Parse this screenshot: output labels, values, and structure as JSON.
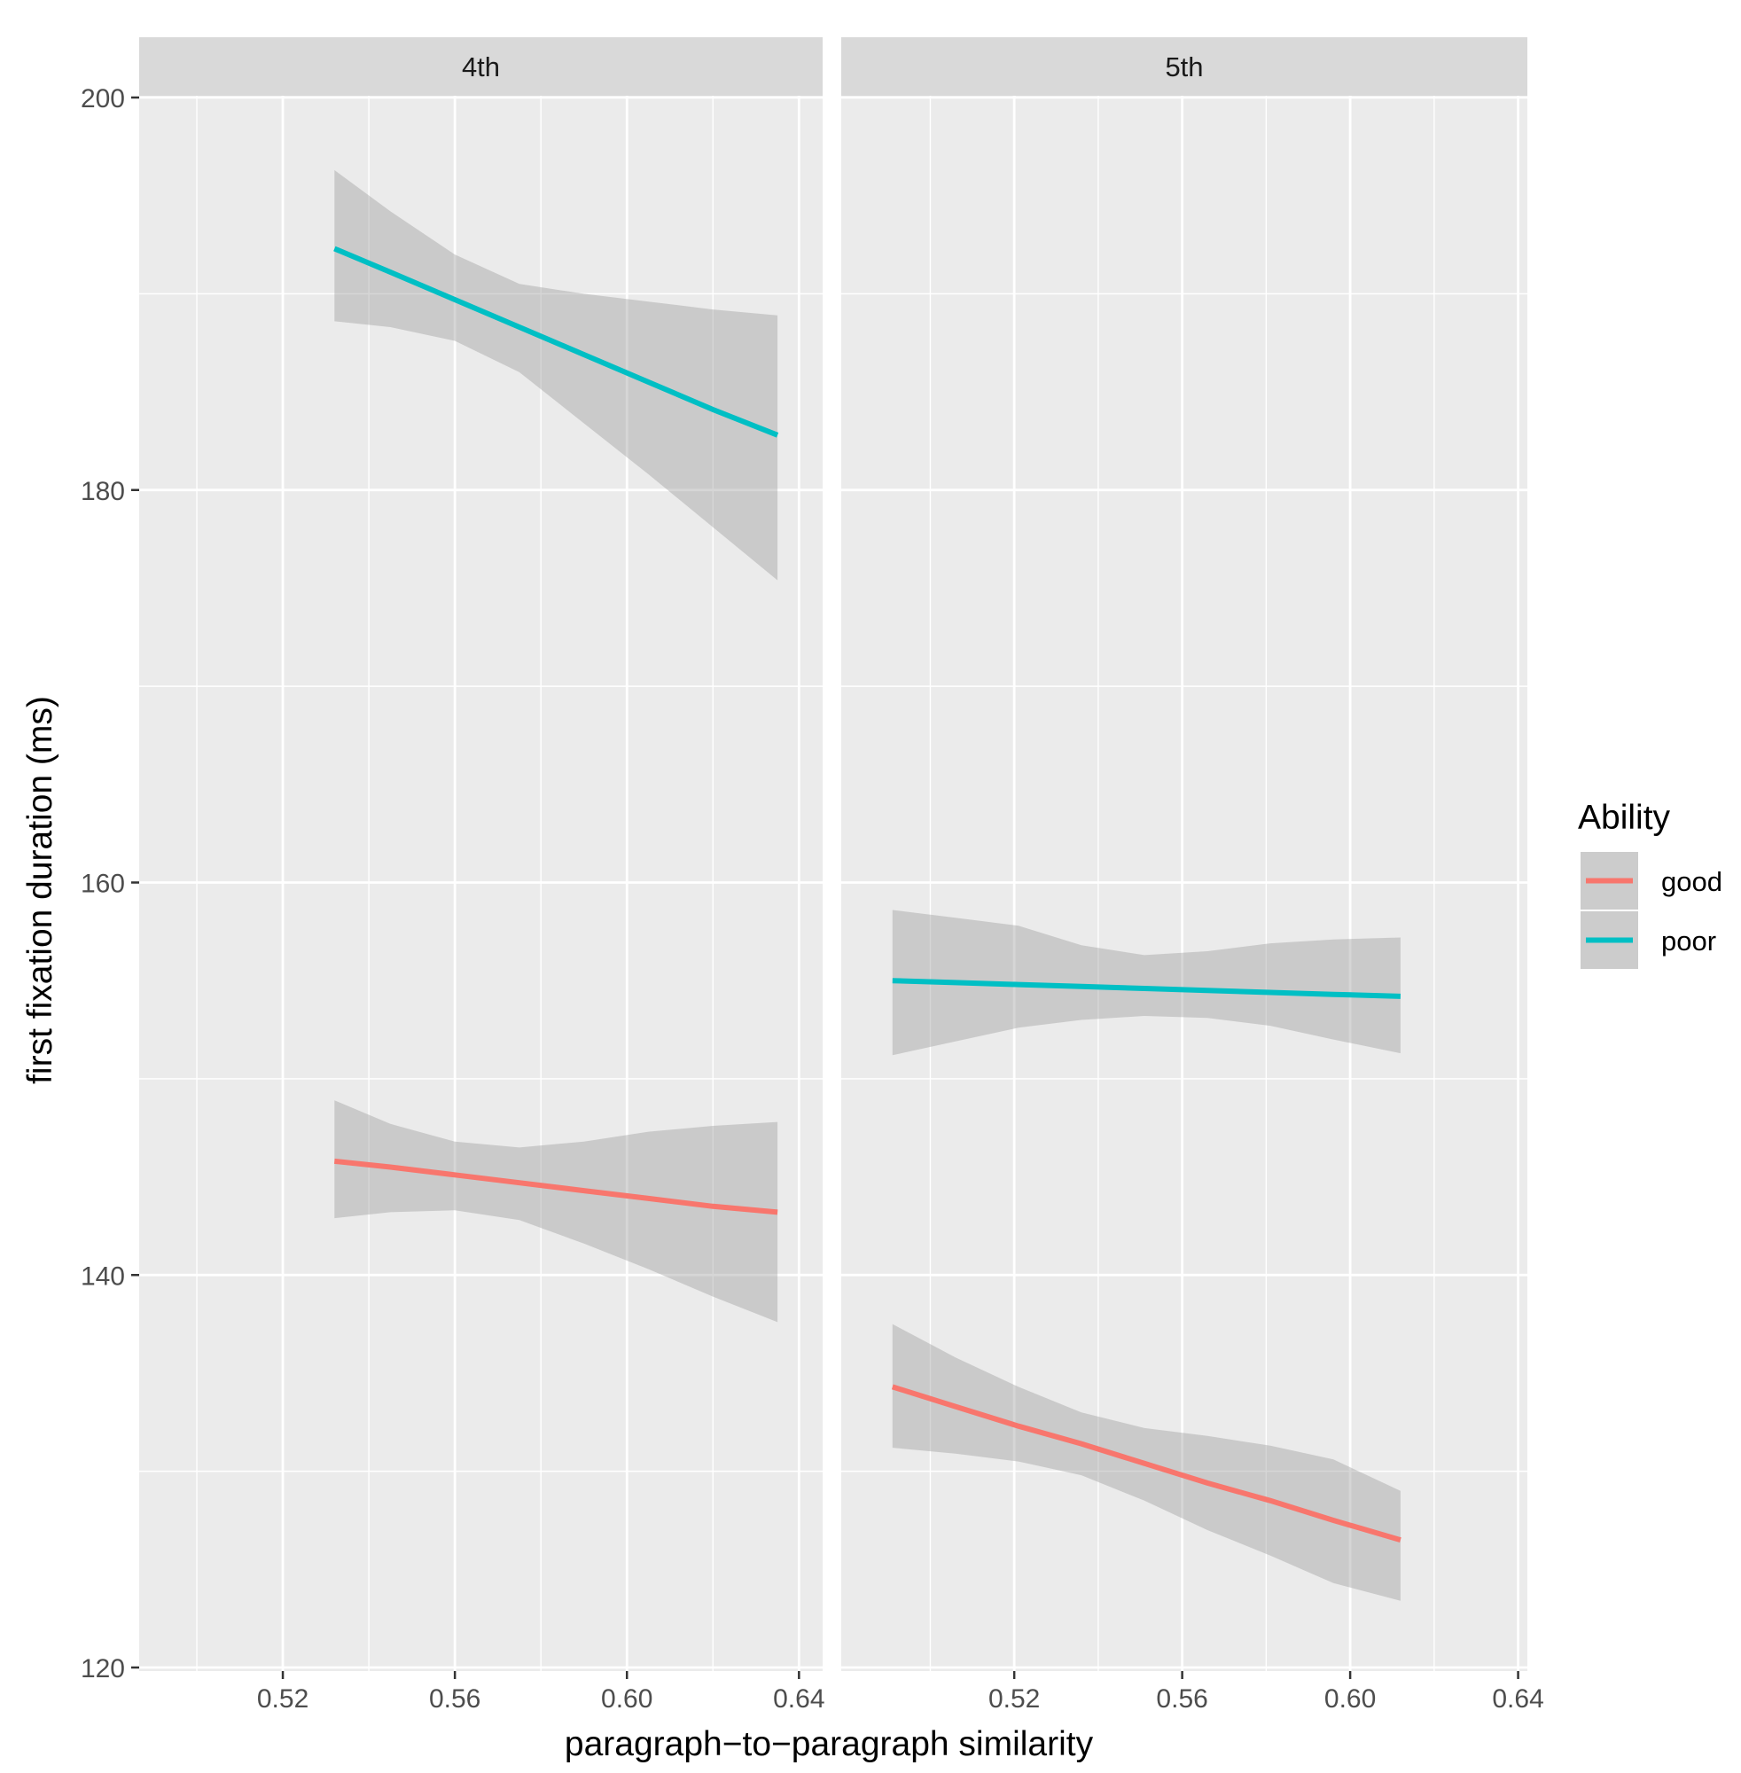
{
  "chart_data": {
    "type": "line",
    "facets": [
      "4th",
      "5th"
    ],
    "xlabel": "paragraph−to−paragraph similarity",
    "ylabel": "first fixation duration (ms)",
    "x_ticks": [
      0.52,
      0.56,
      0.6,
      0.64
    ],
    "x_tick_labels": [
      "0.52",
      "0.56",
      "0.60",
      "0.64"
    ],
    "y_ticks": [
      120,
      140,
      160,
      180,
      200
    ],
    "y_tick_labels": [
      "120",
      "140",
      "160",
      "180",
      "200"
    ],
    "ylim": [
      120,
      200
    ],
    "xlim_facets": [
      [
        0.4866,
        0.6455
      ],
      [
        0.4788,
        0.6422
      ]
    ],
    "legend": {
      "title": "Ability",
      "entries": [
        {
          "name": "good",
          "color": "#F8766D"
        },
        {
          "name": "poor",
          "color": "#00BFC4"
        }
      ]
    },
    "ribbon_color": "#999999",
    "panels": [
      {
        "facet": "4th",
        "series": [
          {
            "name": "poor",
            "x": [
              0.532,
              0.545,
              0.56,
              0.575,
              0.59,
              0.605,
              0.62,
              0.635
            ],
            "y": [
              192.3,
              191.1,
              189.7,
              188.3,
              186.9,
              185.5,
              184.1,
              182.8
            ],
            "lower": [
              188.6,
              188.3,
              187.6,
              186.0,
              183.4,
              180.8,
              178.1,
              175.4
            ],
            "upper": [
              196.3,
              194.2,
              192.0,
              190.5,
              190.0,
              189.6,
              189.2,
              188.9
            ]
          },
          {
            "name": "good",
            "x": [
              0.532,
              0.545,
              0.56,
              0.575,
              0.59,
              0.605,
              0.62,
              0.635
            ],
            "y": [
              145.8,
              145.5,
              145.1,
              144.7,
              144.3,
              143.9,
              143.5,
              143.2
            ],
            "lower": [
              142.9,
              143.2,
              143.3,
              142.8,
              141.6,
              140.3,
              138.9,
              137.6
            ],
            "upper": [
              148.9,
              147.7,
              146.8,
              146.5,
              146.8,
              147.3,
              147.6,
              147.8
            ]
          }
        ]
      },
      {
        "facet": "5th",
        "series": [
          {
            "name": "poor",
            "x": [
              0.491,
              0.506,
              0.521,
              0.536,
              0.551,
              0.566,
              0.581,
              0.596,
              0.612
            ],
            "y": [
              155.0,
              154.9,
              154.8,
              154.7,
              154.6,
              154.5,
              154.4,
              154.3,
              154.2
            ],
            "lower": [
              151.2,
              151.9,
              152.6,
              153.0,
              153.2,
              153.1,
              152.7,
              152.0,
              151.3
            ],
            "upper": [
              158.6,
              158.2,
              157.8,
              156.8,
              156.3,
              156.5,
              156.9,
              157.1,
              157.2
            ]
          },
          {
            "name": "good",
            "x": [
              0.491,
              0.506,
              0.521,
              0.536,
              0.551,
              0.566,
              0.581,
              0.596,
              0.612
            ],
            "y": [
              134.3,
              133.3,
              132.3,
              131.4,
              130.4,
              129.4,
              128.5,
              127.5,
              126.5
            ],
            "lower": [
              131.2,
              130.9,
              130.5,
              129.8,
              128.5,
              127.0,
              125.7,
              124.3,
              123.4
            ],
            "upper": [
              137.5,
              135.8,
              134.3,
              133.0,
              132.2,
              131.8,
              131.3,
              130.6,
              129.0
            ]
          }
        ]
      }
    ]
  }
}
